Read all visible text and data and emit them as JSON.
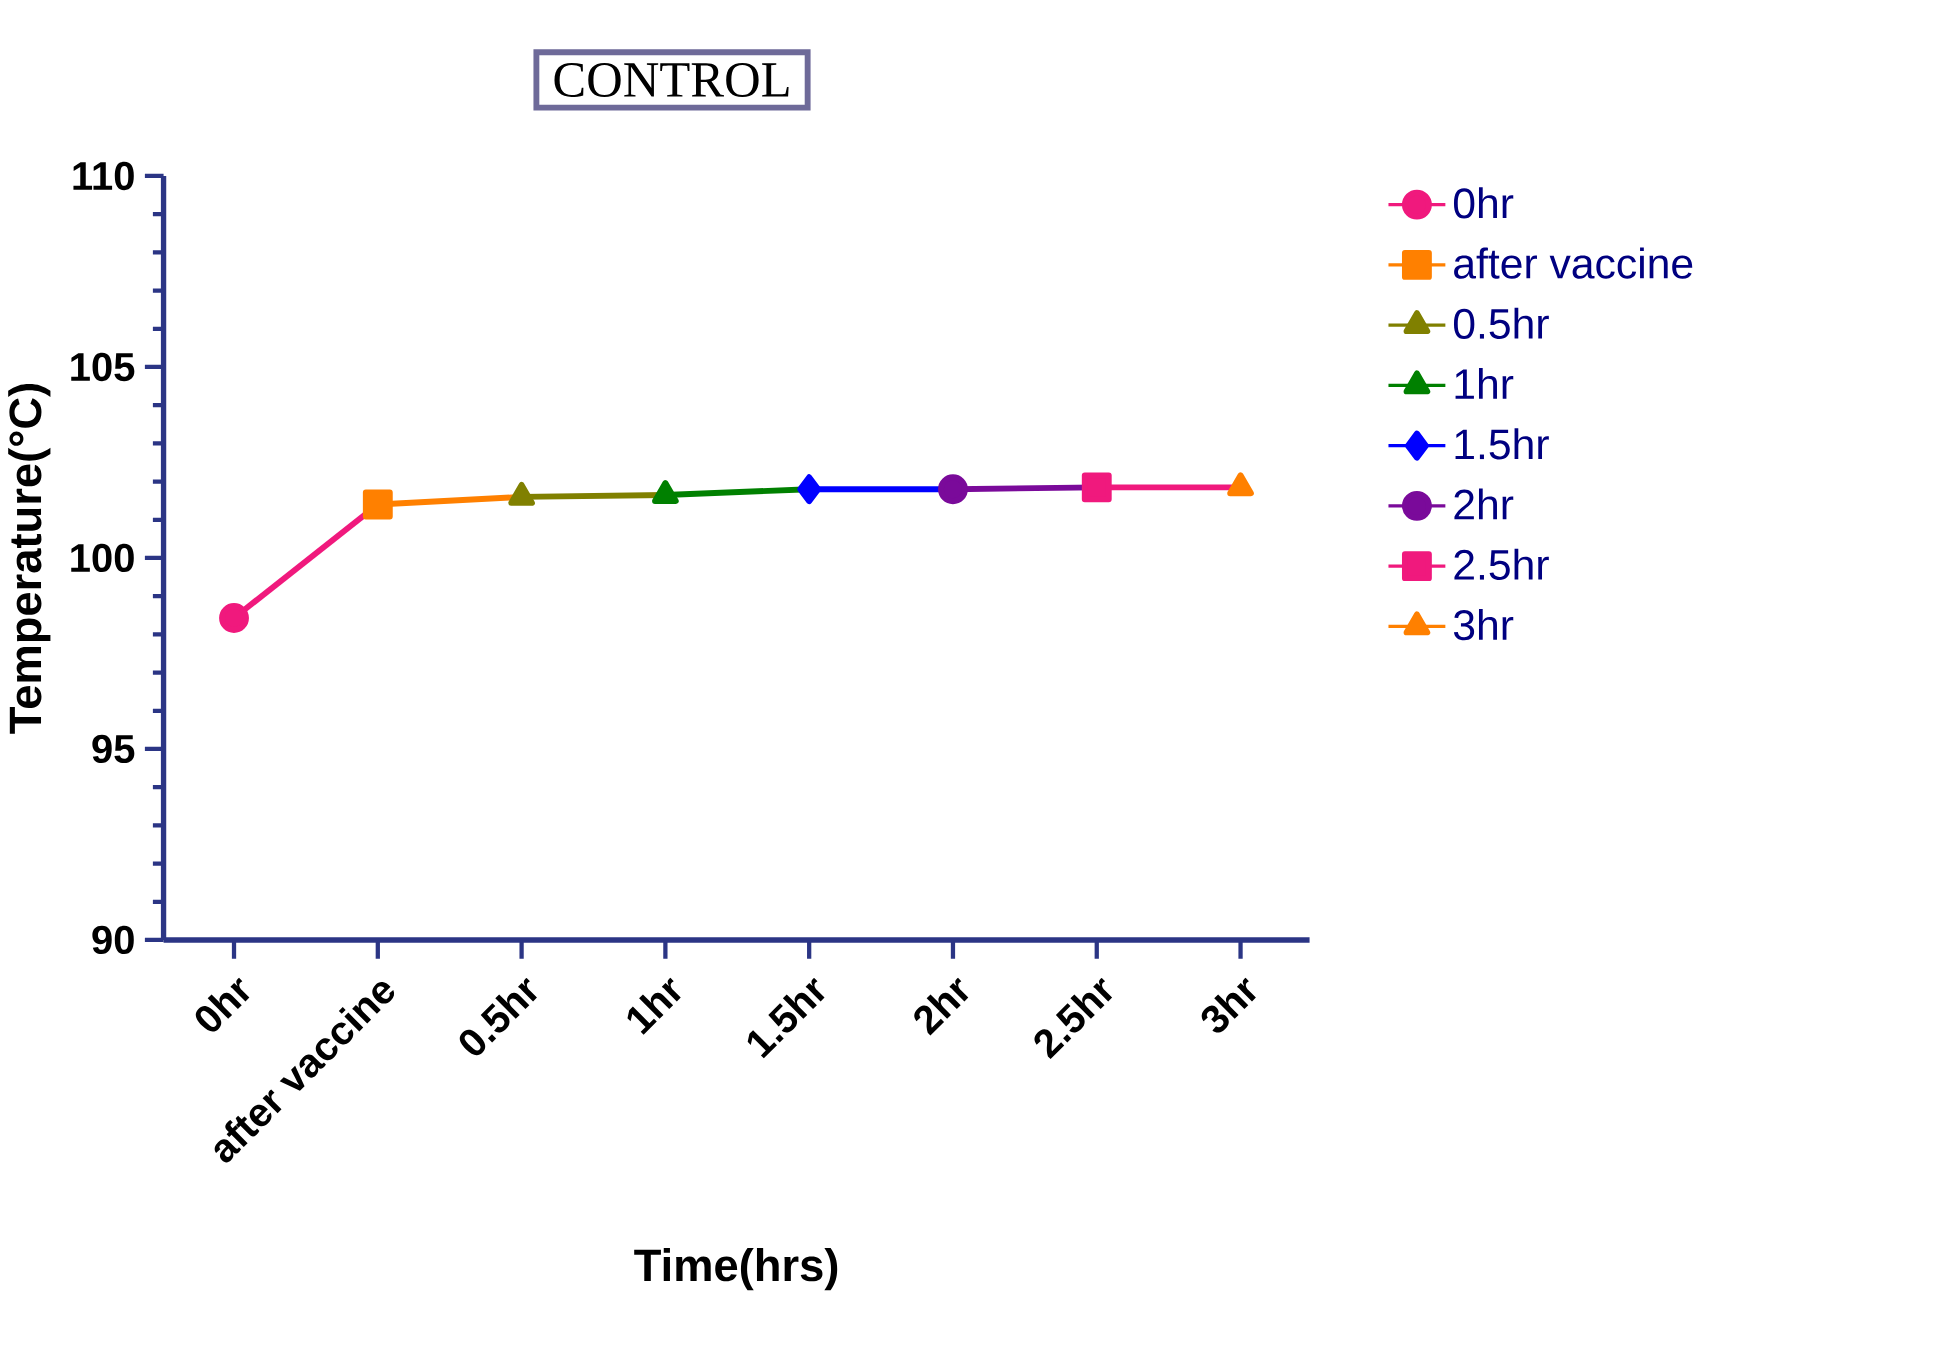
{
  "chart_data": {
    "type": "line",
    "title": "CONTROL",
    "xlabel": "Time(hrs)",
    "ylabel": "Temperature(°C)",
    "categories": [
      "0hr",
      "after vaccine",
      "0.5hr",
      "1hr",
      "1.5hr",
      "2hr",
      "2.5hr",
      "3hr"
    ],
    "ylim": [
      90,
      110
    ],
    "yticks": [
      90,
      95,
      100,
      105,
      110
    ],
    "grid": false,
    "legend": "right",
    "line_style": "solid",
    "series": [
      {
        "name": "0hr",
        "color": "#f0197d",
        "marker": "circle",
        "values": [
          98.43,
          101.4,
          null,
          null,
          null,
          null,
          null,
          null
        ]
      },
      {
        "name": "after vaccine",
        "color": "#ff8000",
        "marker": "square",
        "values": [
          null,
          101.4,
          101.6,
          null,
          null,
          null,
          null,
          null
        ]
      },
      {
        "name": "0.5hr",
        "color": "#808000",
        "marker": "triangle",
        "values": [
          null,
          null,
          101.6,
          101.65,
          null,
          null,
          null,
          null
        ]
      },
      {
        "name": "1hr",
        "color": "#008000",
        "marker": "triangle-down",
        "values": [
          null,
          null,
          null,
          101.65,
          101.8,
          null,
          null,
          null
        ]
      },
      {
        "name": "1.5hr",
        "color": "#0000ff",
        "marker": "diamond",
        "values": [
          null,
          null,
          null,
          null,
          101.8,
          101.8,
          null,
          null
        ]
      },
      {
        "name": "2hr",
        "color": "#7a0a9a",
        "marker": "circle",
        "values": [
          null,
          null,
          null,
          null,
          null,
          101.8,
          101.85,
          null
        ]
      },
      {
        "name": "2.5hr",
        "color": "#f0197d",
        "marker": "square",
        "values": [
          null,
          null,
          null,
          null,
          null,
          null,
          101.85,
          101.85
        ]
      },
      {
        "name": "3hr",
        "color": "#ff8000",
        "marker": "triangle",
        "values": [
          null,
          null,
          null,
          null,
          null,
          null,
          null,
          101.85
        ]
      }
    ]
  }
}
